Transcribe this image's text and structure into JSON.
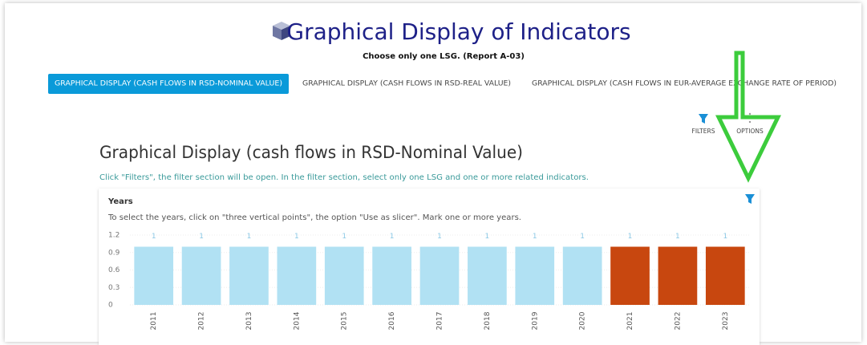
{
  "header": {
    "title": "Graphical Display of Indicators",
    "subtitle": "Choose only one LSG. (Report A-03)"
  },
  "tabs": [
    "GRAPHICAL DISPLAY (CASH FLOWS IN RSD-NOMINAL VALUE)",
    "GRAPHICAL DISPLAY (CASH FLOWS IN RSD-REAL VALUE)",
    "GRAPHICAL DISPLAY (CASH FLOWS IN EUR-AVERAGE EXCHANGE RATE OF PERIOD)"
  ],
  "toolbar": {
    "filters": "FILTERS",
    "options": "OPTIONS"
  },
  "section": {
    "heading": "Graphical Display (cash flows in RSD-Nominal Value)",
    "instruction": "Click \"Filters\", the filter section will be open. In the filter section, select only one LSG and one or more related indicators."
  },
  "chart": {
    "type": "bar",
    "title": "Years",
    "subtitle": "To select the years, click on \"three vertical points\", the option \"Use as slicer\". Mark one or more years.",
    "categories": [
      "2011",
      "2012",
      "2013",
      "2014",
      "2015",
      "2016",
      "2017",
      "2018",
      "2019",
      "2020",
      "2021",
      "2022",
      "2023"
    ],
    "values": [
      1,
      1,
      1,
      1,
      1,
      1,
      1,
      1,
      1,
      1,
      1,
      1,
      1
    ],
    "colors": [
      "#b1e1f3",
      "#b1e1f3",
      "#b1e1f3",
      "#b1e1f3",
      "#b1e1f3",
      "#b1e1f3",
      "#b1e1f3",
      "#b1e1f3",
      "#b1e1f3",
      "#b1e1f3",
      "#c8470f",
      "#c8470f",
      "#c8470f"
    ],
    "ylim": [
      0,
      1.2
    ],
    "yticks": [
      0,
      0.3,
      0.6,
      0.9,
      1.2
    ],
    "grid": true
  }
}
